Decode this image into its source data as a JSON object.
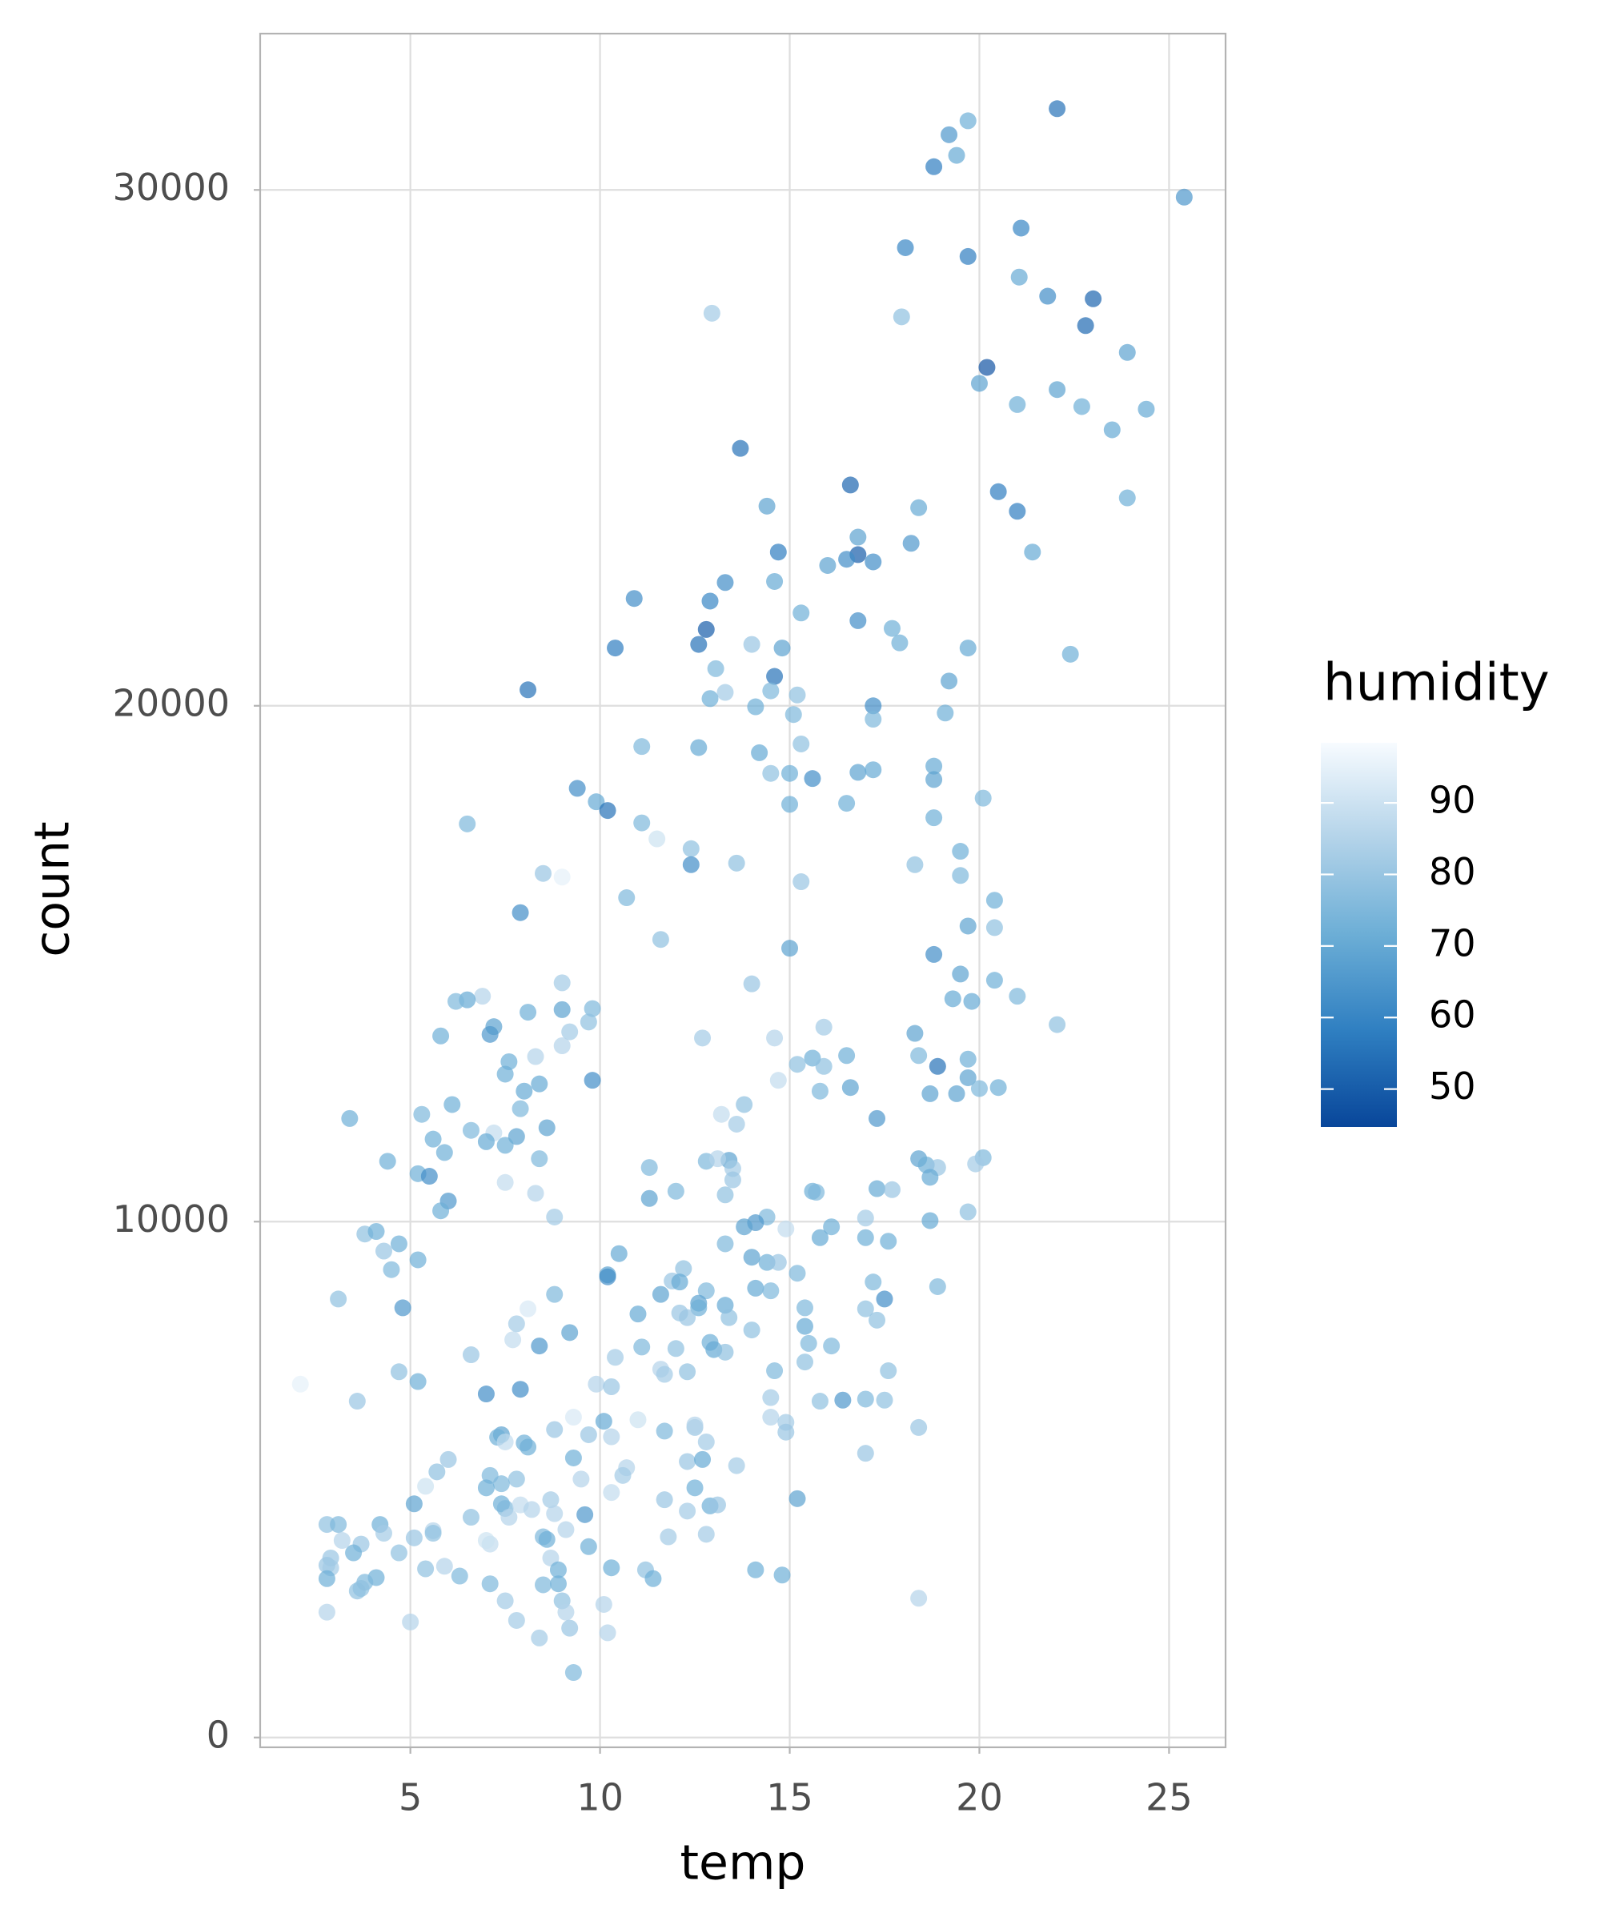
{
  "chart_data": {
    "type": "scatter",
    "x_label": "temp",
    "y_label": "count",
    "color_label": "humidity",
    "x": [
      22.05,
      19.7,
      19.2,
      18.8,
      19.4,
      25.4,
      21.1,
      18.05,
      19.7,
      17.95,
      12.95,
      21.05,
      21.8,
      23.0,
      22.8,
      23.9,
      20.2,
      20.0,
      21.0,
      22.05,
      22.7,
      24.4,
      23.5,
      13.7,
      16.6,
      20.5,
      21.0,
      23.9,
      14.4,
      18.4,
      21.4,
      16.8,
      18.2,
      14.7,
      16.8,
      16.5,
      16.0,
      17.2,
      14.6,
      13.3,
      10.9,
      12.9,
      15.3,
      16.8,
      17.7,
      12.8,
      12.6,
      10.4,
      14.0,
      14.8,
      17.9,
      19.7,
      22.4,
      14.6,
      13.05,
      13.3,
      14.5,
      15.2,
      12.9,
      8.1,
      17.2,
      19.2,
      14.1,
      15.1,
      19.1,
      17.2,
      12.6,
      11.1,
      14.2,
      15.3,
      18.8,
      15.0,
      14.5,
      15.6,
      16.8,
      17.2,
      18.8,
      9.4,
      9.9,
      10.2,
      15.0,
      16.5,
      20.1,
      6.5,
      11.1,
      11.5,
      12.4,
      12.4,
      18.8,
      19.5,
      18.3,
      13.6,
      8.5,
      9.0,
      19.5,
      15.3,
      20.4,
      10.7,
      7.9,
      20.4,
      19.7,
      11.6,
      15.0,
      18.8,
      14.0,
      9.0,
      19.5,
      20.4,
      6.9,
      6.5,
      6.2,
      9.8,
      9.0,
      8.1,
      19.3,
      19.8,
      21.0,
      9.7,
      7.2,
      7.1,
      5.8,
      12.7,
      9.2,
      9.0,
      14.6,
      15.9,
      18.3,
      22.05,
      18.4,
      18.9,
      19.7,
      16.5,
      15.6,
      15.2,
      15.9,
      8.3,
      7.6,
      7.5,
      15.8,
      14.7,
      9.8,
      16.6,
      19.7,
      20.0,
      20.5,
      19.4,
      18.7,
      8.4,
      8.0,
      13.8,
      7.9,
      6.1,
      5.3,
      3.4,
      13.2,
      17.3,
      13.6,
      8.6,
      6.6,
      7.2,
      5.6,
      7.0,
      7.8,
      7.5,
      5.9,
      8.4,
      4.4,
      12.8,
      13.4,
      13.1,
      18.4,
      18.6,
      18.9,
      20.1,
      19.9,
      11.3,
      13.5,
      5.2,
      5.5,
      18.7,
      7.5,
      13.5,
      15.6,
      15.7,
      17.3,
      17.7,
      12.0,
      13.3,
      8.3,
      11.3,
      6.0,
      5.8,
      8.8,
      19.7,
      18.7,
      17.0,
      14.4,
      14.1,
      13.8,
      14.9,
      16.1,
      3.8,
      4.1,
      15.8,
      17.0,
      17.6,
      13.3,
      4.7,
      4.3,
      5.2,
      10.5,
      14.0,
      14.4,
      14.7,
      4.5,
      12.2,
      15.2,
      10.2,
      10.2,
      11.9,
      12.1,
      14.1,
      14.5,
      17.2,
      18.9,
      8.8,
      11.6,
      12.8,
      3.1,
      12.6,
      12.6,
      17.5,
      15.4,
      13.3,
      4.8,
      8.1,
      11.0,
      12.1,
      12.3,
      17.0,
      13.4,
      7.8,
      14.0,
      15.4,
      17.3,
      9.2,
      7.7,
      12.9,
      11.1,
      12.0,
      15.5,
      13.0,
      16.1,
      10.4,
      13.3,
      8.4,
      6.6,
      14.6,
      17.6,
      4.7,
      11.6,
      11.7,
      12.3,
      15.4,
      5.2,
      9.9,
      10.3,
      2.1,
      7.0,
      7.9,
      14.5,
      15.8,
      16.4,
      17.0,
      17.5,
      3.6,
      9.3,
      14.5,
      14.9,
      11.0,
      10.1,
      12.5,
      8.8,
      18.4,
      14.9,
      12.5,
      9.7,
      10.3,
      7.4,
      7.3,
      11.7,
      12.8,
      7.5,
      8.1,
      6.0,
      9.3,
      8.0,
      12.3,
      12.7,
      13.6,
      17.0,
      5.7,
      10.7,
      10.6,
      7.1,
      9.5,
      5.4,
      7.8,
      7.4,
      7.0,
      12.5,
      10.3,
      11.7,
      15.2,
      7.4,
      12.9,
      13.1,
      5.1,
      8.7,
      7.5,
      7.9,
      8.2,
      12.3,
      9.6,
      6.6,
      8.8,
      7.6,
      9.1,
      2.8,
      3.1,
      4.2,
      8.5,
      8.6,
      4.3,
      5.6,
      5.6,
      3.7,
      3.2,
      5.1,
      3.5,
      7.1,
      11.8,
      12.8,
      9.7,
      7.0,
      2.9,
      4.7,
      8.7,
      2.8,
      2.9,
      5.4,
      5.9,
      8.9,
      10.3,
      11.2,
      11.4,
      14.1,
      14.8,
      6.3,
      2.8,
      4.1,
      3.8,
      7.1,
      8.9,
      8.5,
      3.6,
      3.7,
      9.0,
      7.5,
      10.1,
      18.4,
      2.8,
      9.1,
      7.8,
      5.0,
      9.2,
      10.2,
      8.4,
      9.3
    ],
    "values": [
      31575,
      31340,
      31070,
      30450,
      30670,
      29860,
      29260,
      28880,
      28710,
      27540,
      27610,
      28310,
      27940,
      27890,
      27370,
      26850,
      26560,
      26250,
      25840,
      26130,
      25800,
      25750,
      25350,
      24990,
      24280,
      24150,
      23770,
      24030,
      23870,
      23840,
      22980,
      23270,
      23150,
      22980,
      22930,
      22840,
      22720,
      22790,
      22410,
      22390,
      22080,
      22030,
      21800,
      21650,
      21500,
      21480,
      21190,
      21120,
      21190,
      21120,
      21220,
      21120,
      21000,
      20570,
      20720,
      20260,
      20290,
      20210,
      20140,
      20310,
      20000,
      20480,
      19980,
      19830,
      19860,
      19740,
      19190,
      19210,
      19090,
      19260,
      18830,
      18690,
      18690,
      18590,
      18710,
      18760,
      18570,
      18400,
      18140,
      17970,
      18090,
      18110,
      18210,
      17710,
      17730,
      17420,
      17230,
      16920,
      17830,
      17180,
      16920,
      16950,
      16750,
      16680,
      16710,
      16590,
      16230,
      16280,
      15990,
      15700,
      15730,
      15470,
      15300,
      15180,
      14610,
      14630,
      14800,
      14680,
      14370,
      14300,
      14270,
      14130,
      14110,
      14060,
      14320,
      14270,
      14370,
      13870,
      13780,
      13630,
      13600,
      13560,
      13680,
      13410,
      13560,
      13770,
      13650,
      13820,
      13220,
      13010,
      13150,
      13220,
      13170,
      13050,
      13010,
      13200,
      13100,
      12860,
      12530,
      12740,
      12740,
      12600,
      12790,
      12580,
      12600,
      12480,
      12480,
      12670,
      12530,
      12270,
      12190,
      12270,
      12080,
      12000,
      12080,
      12000,
      11890,
      11820,
      11770,
      11720,
      11600,
      11550,
      11650,
      11480,
      11340,
      11220,
      11170,
      11170,
      11190,
      11220,
      11220,
      11100,
      11050,
      11240,
      11120,
      11050,
      11030,
      10930,
      10880,
      10860,
      10760,
      10810,
      10590,
      10570,
      10640,
      10620,
      10590,
      10520,
      10550,
      10450,
      10400,
      10210,
      10090,
      10190,
      10020,
      10070,
      10090,
      9980,
      9900,
      9860,
      9900,
      9760,
      9810,
      9690,
      9690,
      9620,
      9570,
      9570,
      9430,
      9260,
      9380,
      9310,
      9210,
      9210,
      9070,
      9090,
      9000,
      8970,
      8930,
      8850,
      8830,
      8710,
      8660,
      8830,
      8740,
      8590,
      8590,
      8660,
      8500,
      8420,
      8330,
      8500,
      8330,
      8380,
      8330,
      8310,
      8210,
      8230,
      8140,
      8310,
      8140,
      8020,
      7900,
      7970,
      8090,
      7850,
      7710,
      7660,
      7570,
      7540,
      7640,
      7520,
      7590,
      7370,
      7470,
      7590,
      7420,
      7110,
      7110,
      7090,
      7140,
      7040,
      7090,
      7280,
      6900,
      6850,
      6800,
      6850,
      6660,
      6750,
      6590,
      6520,
      6540,
      6560,
      6540,
      6520,
      6210,
      6210,
      6110,
      6160,
      6130,
      6010,
      5970,
      6010,
      5920,
      6060,
      5870,
      5830,
      5870,
      5820,
      5940,
      5730,
      5730,
      5630,
      5390,
      5420,
      5710,
      5350,
      5390,
      5270,
      5510,
      5150,
      5230,
      5080,
      5080,
      5010,
      4870,
      5010,
      4920,
      4840,
      4840,
      4750,
      4610,
      4630,
      4530,
      4490,
      4510,
      4530,
      4610,
      4440,
      4510,
      4420,
      4390,
      4320,
      4270,
      4340,
      4270,
      4030,
      4130,
      4130,
      4130,
      3890,
      3840,
      3960,
      4010,
      3960,
      3750,
      3820,
      3870,
      3580,
      3750,
      3890,
      3940,
      3700,
      3820,
      3480,
      3580,
      3480,
      3340,
      3290,
      3270,
      3320,
      3250,
      3290,
      3250,
      3080,
      3250,
      3150,
      3130,
      3080,
      3100,
      3010,
      2980,
      2980,
      2960,
      2840,
      2890,
      2650,
      2650,
      2580,
      2700,
      2430,
      2430,
      2270,
      2240,
      2120,
      2030,
      1930,
      1260
    ],
    "color_values": [
      55,
      72,
      65,
      58,
      70,
      65,
      60,
      60,
      58,
      78,
      82,
      70,
      62,
      52,
      53,
      68,
      48,
      68,
      72,
      68,
      72,
      70,
      70,
      55,
      52,
      58,
      58,
      72,
      68,
      70,
      70,
      68,
      65,
      58,
      50,
      62,
      68,
      62,
      70,
      62,
      62,
      60,
      72,
      62,
      72,
      50,
      55,
      58,
      80,
      68,
      72,
      70,
      72,
      55,
      75,
      82,
      75,
      78,
      72,
      55,
      62,
      68,
      72,
      75,
      72,
      75,
      70,
      75,
      70,
      78,
      70,
      72,
      78,
      62,
      68,
      70,
      68,
      62,
      70,
      55,
      72,
      72,
      75,
      75,
      75,
      90,
      78,
      62,
      72,
      72,
      78,
      78,
      80,
      95,
      75,
      80,
      72,
      75,
      62,
      78,
      68,
      78,
      68,
      62,
      80,
      82,
      68,
      72,
      85,
      70,
      75,
      75,
      68,
      72,
      70,
      70,
      75,
      78,
      68,
      65,
      72,
      82,
      82,
      85,
      85,
      82,
      68,
      78,
      75,
      55,
      72,
      72,
      72,
      78,
      78,
      85,
      72,
      72,
      75,
      88,
      62,
      68,
      68,
      75,
      72,
      68,
      68,
      70,
      70,
      78,
      75,
      72,
      75,
      72,
      88,
      65,
      82,
      68,
      75,
      88,
      72,
      70,
      68,
      72,
      72,
      75,
      72,
      75,
      68,
      85,
      68,
      72,
      80,
      75,
      82,
      75,
      82,
      72,
      62,
      70,
      88,
      80,
      72,
      75,
      70,
      80,
      75,
      78,
      85,
      68,
      65,
      72,
      82,
      78,
      70,
      82,
      75,
      65,
      68,
      88,
      72,
      78,
      72,
      70,
      72,
      72,
      75,
      72,
      80,
      72,
      70,
      68,
      72,
      80,
      75,
      78,
      75,
      68,
      62,
      80,
      70,
      70,
      75,
      75,
      75,
      75,
      68,
      75,
      78,
      68,
      72,
      62,
      75,
      70,
      65,
      92,
      70,
      80,
      80,
      78,
      78,
      82,
      78,
      70,
      78,
      68,
      88,
      72,
      75,
      78,
      75,
      70,
      75,
      82,
      78,
      65,
      80,
      75,
      78,
      78,
      85,
      82,
      78,
      78,
      72,
      85,
      80,
      95,
      62,
      62,
      82,
      78,
      65,
      75,
      78,
      80,
      92,
      85,
      82,
      90,
      70,
      80,
      80,
      80,
      80,
      85,
      80,
      85,
      68,
      72,
      75,
      82,
      88,
      72,
      80,
      72,
      72,
      80,
      70,
      82,
      80,
      78,
      85,
      82,
      75,
      85,
      90,
      78,
      75,
      72,
      72,
      88,
      80,
      68,
      72,
      72,
      80,
      68,
      82,
      75,
      88,
      85,
      82,
      65,
      78,
      85,
      85,
      85,
      78,
      75,
      72,
      75,
      72,
      82,
      85,
      78,
      80,
      85,
      80,
      72,
      88,
      82,
      82,
      72,
      90,
      80,
      78,
      85,
      80,
      82,
      78,
      85,
      72,
      72,
      78,
      72,
      72,
      72,
      75,
      72,
      72,
      75,
      75,
      72,
      75,
      78,
      78,
      78,
      82,
      85,
      85,
      85,
      85,
      82,
      85,
      80,
      85,
      82,
      75
    ],
    "clim": [
      44.7,
      98.4
    ],
    "cticks": [
      50,
      60,
      70,
      80,
      90
    ],
    "colorscale": [
      "#08469a",
      "#2f7fc1",
      "#6caed6",
      "#b3d3e9",
      "#f7fbff"
    ],
    "alpha": 0.7,
    "xlim": [
      1.04,
      26.49
    ],
    "xticks": [
      5,
      10,
      15,
      20,
      25
    ],
    "ylim": [
      -190,
      33030
    ],
    "yticks": [
      0,
      10000,
      20000,
      30000
    ],
    "grid": true
  }
}
